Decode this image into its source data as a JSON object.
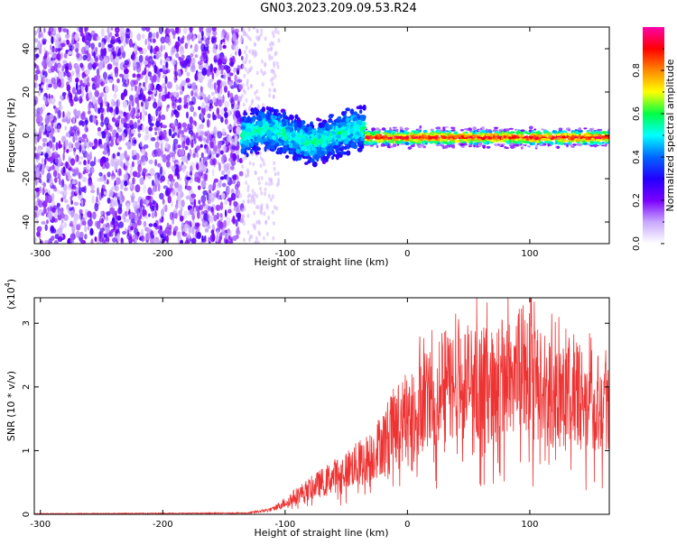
{
  "title": "GN03.2023.209.09.53.R24",
  "chart_data": [
    {
      "type": "heatmap",
      "xlabel": "Height of straight line (km)",
      "ylabel": "Frequency (Hz)",
      "xlim": [
        -305,
        165
      ],
      "ylim": [
        -50,
        50
      ],
      "x_ticks": [
        -300,
        -200,
        -100,
        0,
        100
      ],
      "y_ticks": [
        -40,
        -20,
        0,
        20,
        40
      ],
      "colorbar": {
        "label": "Normalized spectral amplitude",
        "range": [
          0,
          1
        ],
        "ticks": [
          "0.0",
          "0.2",
          "0.4",
          "0.6",
          "0.8"
        ],
        "tick_values": [
          0,
          0.2,
          0.4,
          0.6,
          0.8
        ],
        "colors": [
          "#ffffff",
          "#c8a8ff",
          "#7a00ff",
          "#2200ff",
          "#0066ff",
          "#00ffff",
          "#00ff44",
          "#ffff00",
          "#ff8800",
          "#ff0000",
          "#ff00aa"
        ]
      },
      "regions": [
        {
          "x_range": [
            -305,
            -135
          ],
          "description_level": 0.2,
          "freq_spread": [
            -50,
            50
          ]
        },
        {
          "x_range": [
            -135,
            -35
          ],
          "description_level": 0.35,
          "freq_spread": [
            -12,
            10
          ]
        },
        {
          "x_range": [
            -35,
            165
          ],
          "description_level": 0.85,
          "freq_spread": [
            -5,
            4
          ]
        }
      ]
    },
    {
      "type": "line",
      "xlabel": "Height of straight line (km)",
      "ylabel": "SNR (10 * v/v)",
      "scale_label": "(x10",
      "scale_exp": "4",
      "scale_close": ")",
      "xlim": [
        -305,
        165
      ],
      "ylim": [
        0,
        3.4
      ],
      "x_ticks": [
        -300,
        -200,
        -100,
        0,
        100
      ],
      "y_ticks": [
        0,
        1,
        2,
        3
      ],
      "series_color": "#ee3333",
      "envelope": [
        {
          "x": -305,
          "y": 0.01
        },
        {
          "x": -130,
          "y": 0.02
        },
        {
          "x": -110,
          "y": 0.08
        },
        {
          "x": -90,
          "y": 0.3
        },
        {
          "x": -70,
          "y": 0.5
        },
        {
          "x": -50,
          "y": 0.7
        },
        {
          "x": -30,
          "y": 0.9
        },
        {
          "x": -10,
          "y": 1.4
        },
        {
          "x": 10,
          "y": 1.7
        },
        {
          "x": 30,
          "y": 2.0
        },
        {
          "x": 50,
          "y": 2.1
        },
        {
          "x": 70,
          "y": 2.0
        },
        {
          "x": 90,
          "y": 2.3
        },
        {
          "x": 110,
          "y": 2.0
        },
        {
          "x": 130,
          "y": 1.9
        },
        {
          "x": 150,
          "y": 1.8
        },
        {
          "x": 165,
          "y": 1.8
        }
      ]
    }
  ]
}
